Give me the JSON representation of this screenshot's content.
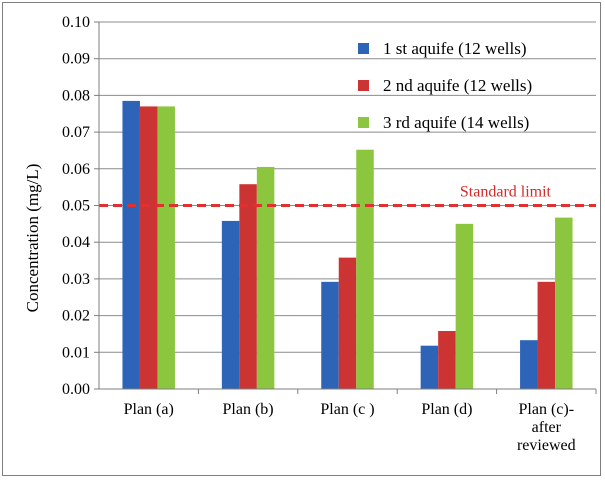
{
  "chart_data": {
    "type": "bar",
    "title": "",
    "xlabel": "",
    "ylabel": "Concentration (mg/L)",
    "ylim": [
      0,
      0.1
    ],
    "yticks": [
      "0.00",
      "0.01",
      "0.02",
      "0.03",
      "0.04",
      "0.05",
      "0.06",
      "0.07",
      "0.08",
      "0.09",
      "0.10"
    ],
    "categories": [
      [
        "Plan (a)"
      ],
      [
        "Plan (b)"
      ],
      [
        "Plan (c )"
      ],
      [
        "Plan (d)"
      ],
      [
        "Plan (c)-",
        "after",
        "reviewed"
      ]
    ],
    "series": [
      {
        "name": "1 st aquife (12 wells)",
        "color": "#2e64b8",
        "values": [
          0.0785,
          0.0458,
          0.0292,
          0.0118,
          0.0133
        ]
      },
      {
        "name": "2 nd aquife (12 wells)",
        "color": "#cc3333",
        "values": [
          0.077,
          0.0558,
          0.0358,
          0.0158,
          0.0292
        ]
      },
      {
        "name": "3 rd aquife (14 wells)",
        "color": "#8cc63f",
        "values": [
          0.077,
          0.0605,
          0.0652,
          0.045,
          0.0467
        ]
      }
    ],
    "reference_line": {
      "label": "Standard limit",
      "value": 0.05,
      "color": "#e03030",
      "style": "dashed"
    },
    "grid": true,
    "legend_position": "top-right"
  }
}
